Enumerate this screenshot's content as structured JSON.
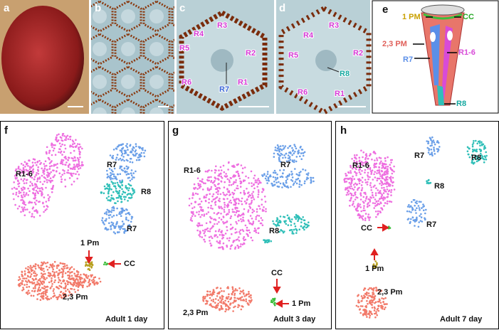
{
  "panels": {
    "a": {
      "label": "a"
    },
    "b": {
      "label": "b"
    },
    "c": {
      "label": "c",
      "cells": [
        "R3",
        "R4",
        "R5",
        "R2",
        "R6",
        "R7",
        "R1"
      ]
    },
    "d": {
      "label": "d",
      "cells": [
        "R3",
        "R4",
        "R5",
        "R2",
        "R8",
        "R6",
        "R1"
      ]
    },
    "e": {
      "label": "e",
      "parts": [
        "1 PM",
        "CC",
        "2,3 PM",
        "R7",
        "R1-6",
        "R8"
      ]
    },
    "f": {
      "label": "f",
      "clusters": [
        "R1-6",
        "R7",
        "R8",
        "R7",
        "1 Pm",
        "CC",
        "2,3 Pm"
      ],
      "stage": "Adult 1 day"
    },
    "g": {
      "label": "g",
      "clusters": [
        "R1-6",
        "R7",
        "R8",
        "CC",
        "1 Pm",
        "2,3 Pm"
      ],
      "stage": "Adult 3 day"
    },
    "h": {
      "label": "h",
      "clusters": [
        "R1-6",
        "R7",
        "R8",
        "R8",
        "CC",
        "R7",
        "1 Pm",
        "2,3 Pm"
      ],
      "stage": "Adult 7 day"
    }
  }
}
